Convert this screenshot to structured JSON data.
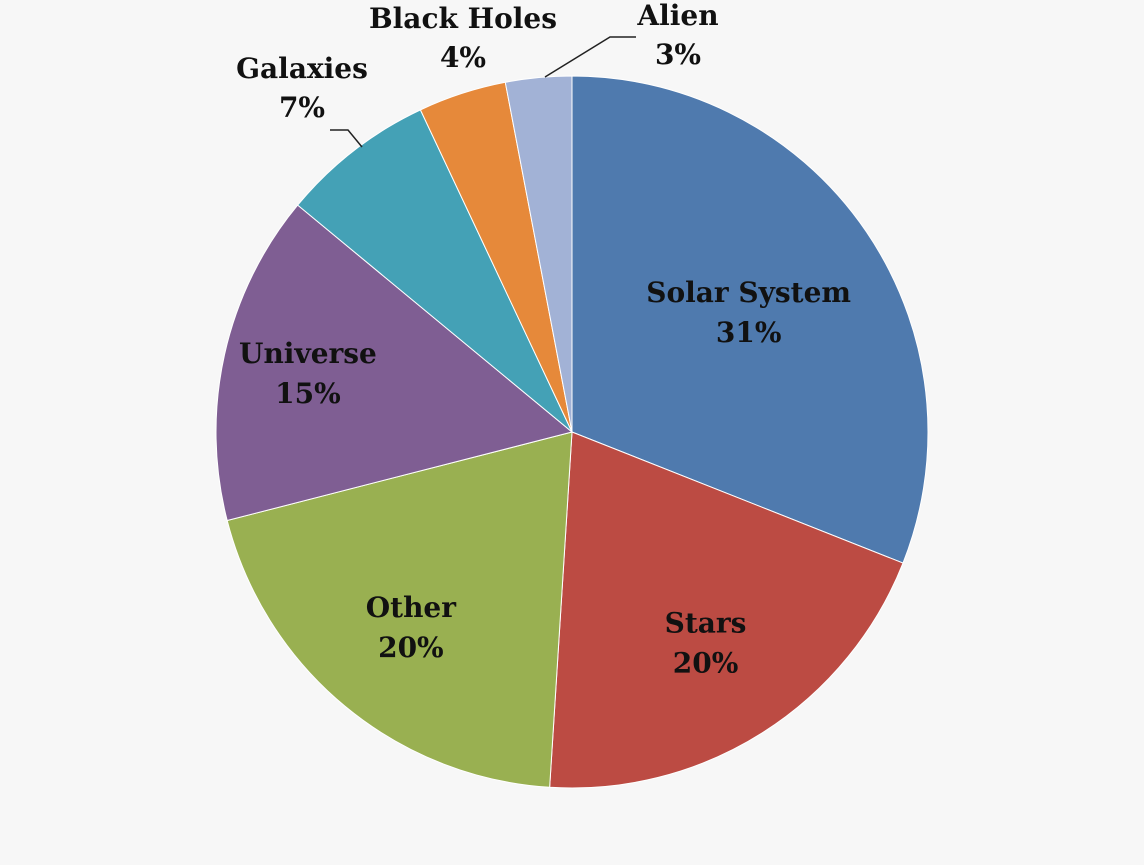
{
  "chart_data": {
    "type": "pie",
    "title": "",
    "slices": [
      {
        "label": "Solar System",
        "value": 31,
        "value_label": "31%",
        "color": "#4f7aae"
      },
      {
        "label": "Stars",
        "value": 20,
        "value_label": "20%",
        "color": "#bc4b43"
      },
      {
        "label": "Other",
        "value": 20,
        "value_label": "20%",
        "color": "#99b051"
      },
      {
        "label": "Universe",
        "value": 15,
        "value_label": "15%",
        "color": "#7f5e93"
      },
      {
        "label": "Galaxies",
        "value": 7,
        "value_label": "7%",
        "color": "#44a1b6"
      },
      {
        "label": "Black Holes",
        "value": 4,
        "value_label": "4%",
        "color": "#e6893a"
      },
      {
        "label": "Alien",
        "value": 3,
        "value_label": "3%",
        "color": "#a2b2d6"
      }
    ],
    "start_angle": "12 o'clock",
    "direction": "clockwise",
    "legend": "none",
    "data_labels": "category name and percentage"
  }
}
